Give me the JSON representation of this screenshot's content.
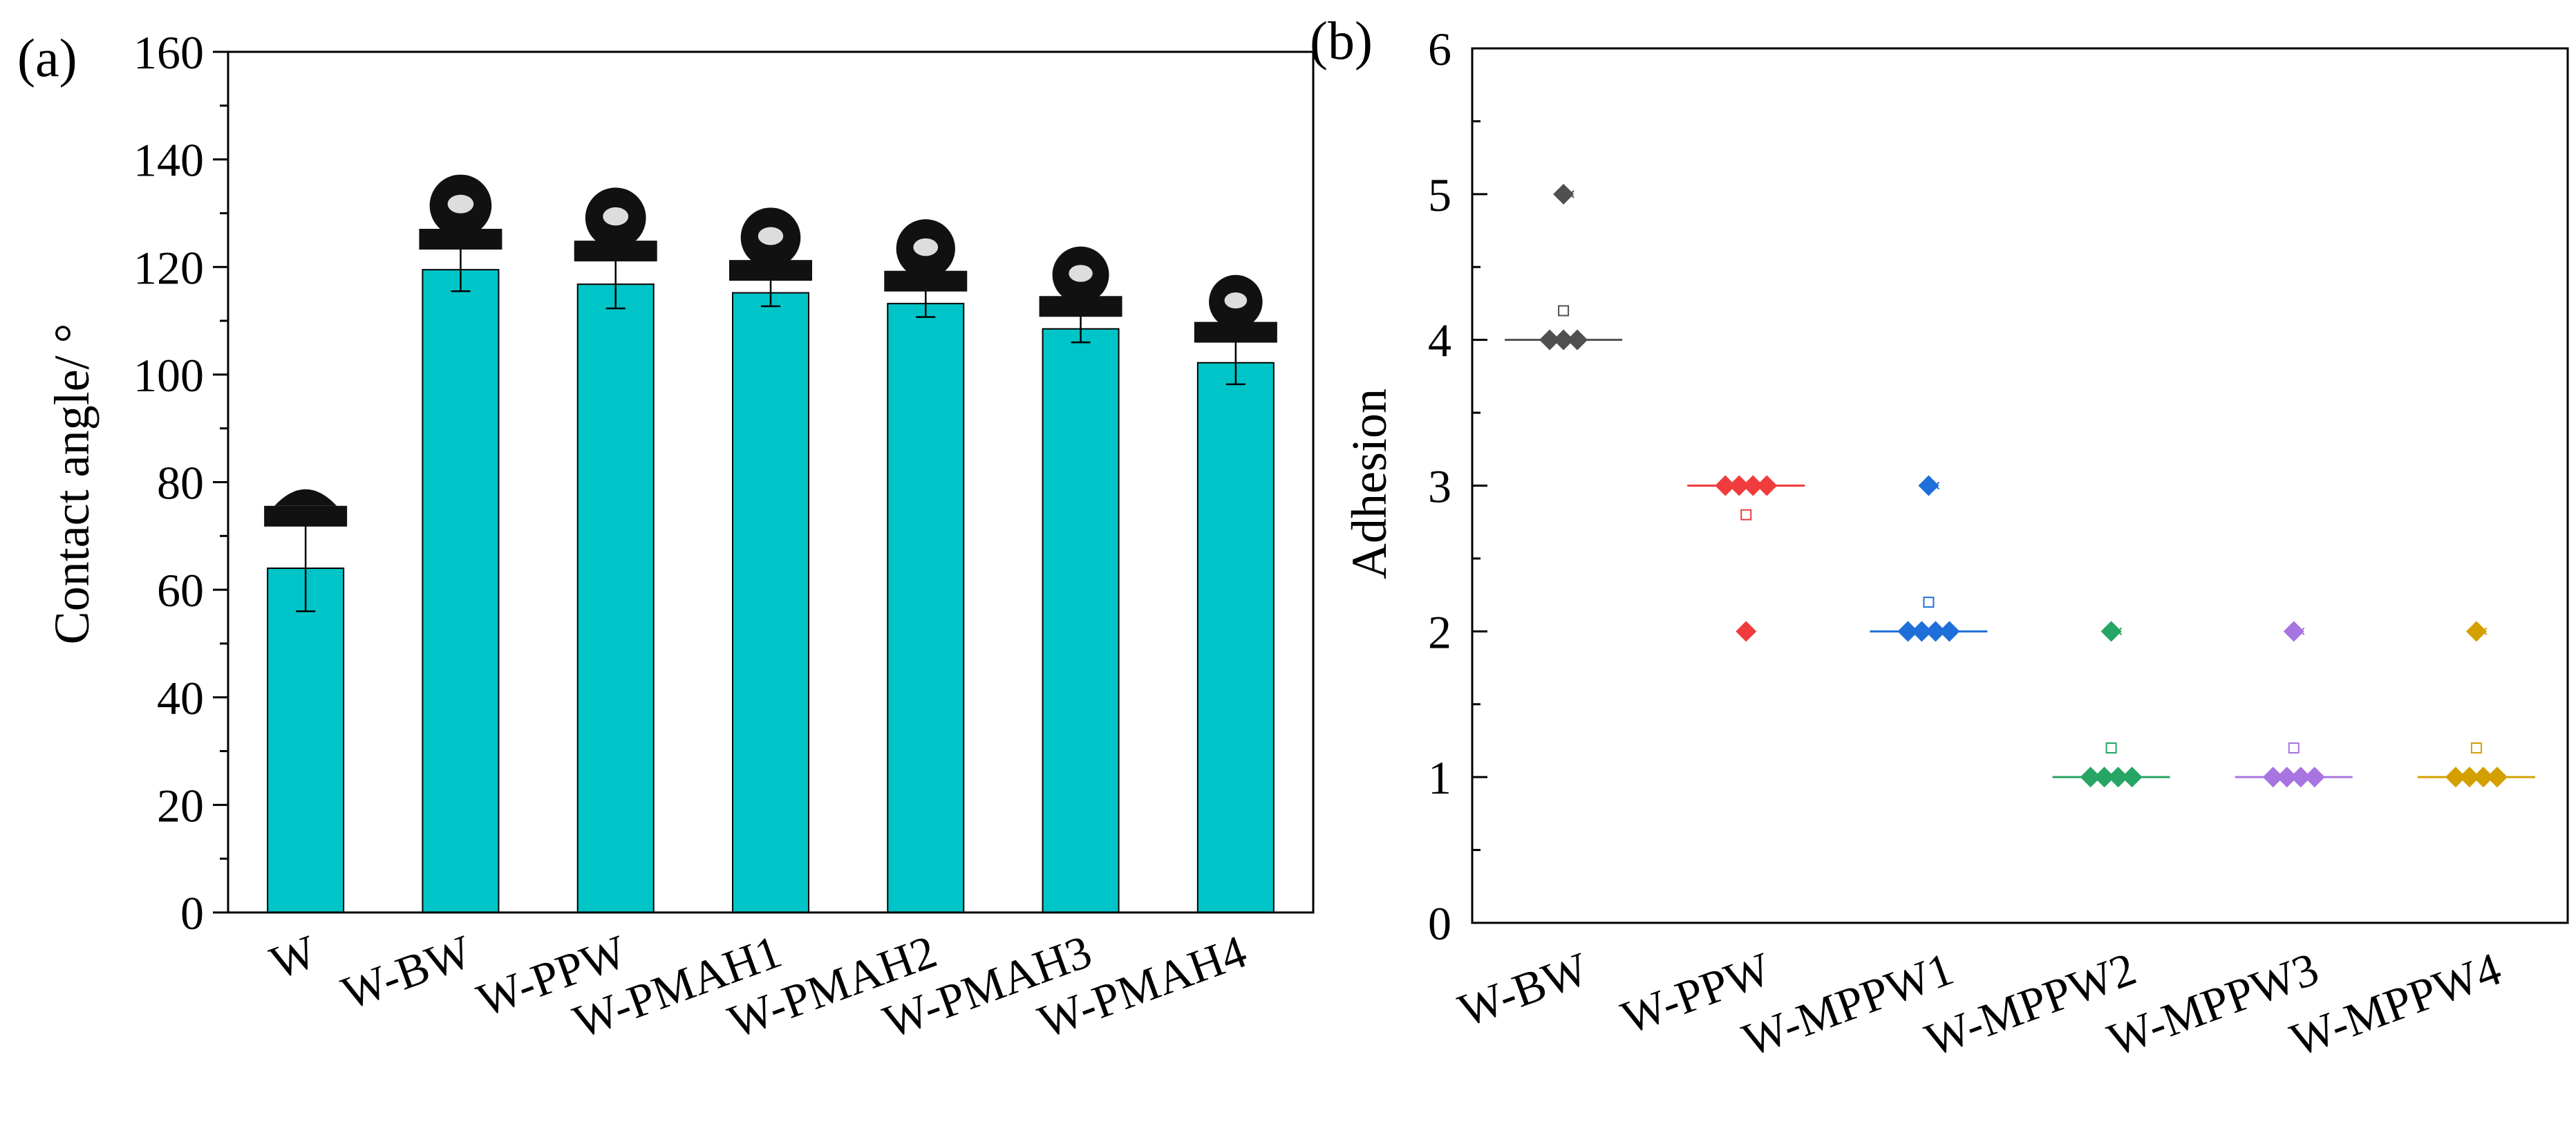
{
  "chart_data": [
    {
      "panel_label": "(a)",
      "type": "bar",
      "ylabel": "Contact angle/ °",
      "xlabel": "",
      "ylim": [
        0,
        160
      ],
      "yticks": [
        0,
        20,
        40,
        60,
        80,
        100,
        120,
        140,
        160
      ],
      "categories": [
        "W",
        "W-BW",
        "W-PPW",
        "W-PMAH1",
        "W-PMAH2",
        "W-PMAH3",
        "W-PMAH4"
      ],
      "values": [
        64,
        119.5,
        116.8,
        115.2,
        113.2,
        108.5,
        102.2
      ],
      "errors": [
        8,
        4,
        4.5,
        2.5,
        2.5,
        2.5,
        4
      ],
      "bar_color": "#00C5C8",
      "droplet_icons": true
    },
    {
      "panel_label": "(b)",
      "type": "scatter",
      "ylabel": "Adhesion",
      "xlabel": "",
      "ylim": [
        0,
        6
      ],
      "yticks": [
        0,
        1,
        2,
        3,
        4,
        5,
        6
      ],
      "categories": [
        "W-BW",
        "W-PPW",
        "W-MPPW1",
        "W-MPPW2",
        "W-MPPW3",
        "W-MPPW4"
      ],
      "series": [
        {
          "name": "W-BW",
          "color": "#505050",
          "points": [
            5,
            4,
            4,
            4
          ],
          "mean": 4.2,
          "median": 4
        },
        {
          "name": "W-PPW",
          "color": "#F03C3C",
          "points": [
            3,
            3,
            3,
            3,
            2
          ],
          "mean": 2.8,
          "median": 3
        },
        {
          "name": "W-MPPW1",
          "color": "#1E6FD9",
          "points": [
            3,
            2,
            2,
            2,
            2
          ],
          "mean": 2.2,
          "median": 2
        },
        {
          "name": "W-MPPW2",
          "color": "#27A564",
          "points": [
            2,
            1,
            1,
            1,
            1
          ],
          "mean": 1.2,
          "median": 1
        },
        {
          "name": "W-MPPW3",
          "color": "#A874E0",
          "points": [
            2,
            1,
            1,
            1,
            1
          ],
          "mean": 1.2,
          "median": 1
        },
        {
          "name": "W-MPPW4",
          "color": "#D4A000",
          "points": [
            2,
            1,
            1,
            1,
            1
          ],
          "mean": 1.2,
          "median": 1
        }
      ]
    }
  ]
}
